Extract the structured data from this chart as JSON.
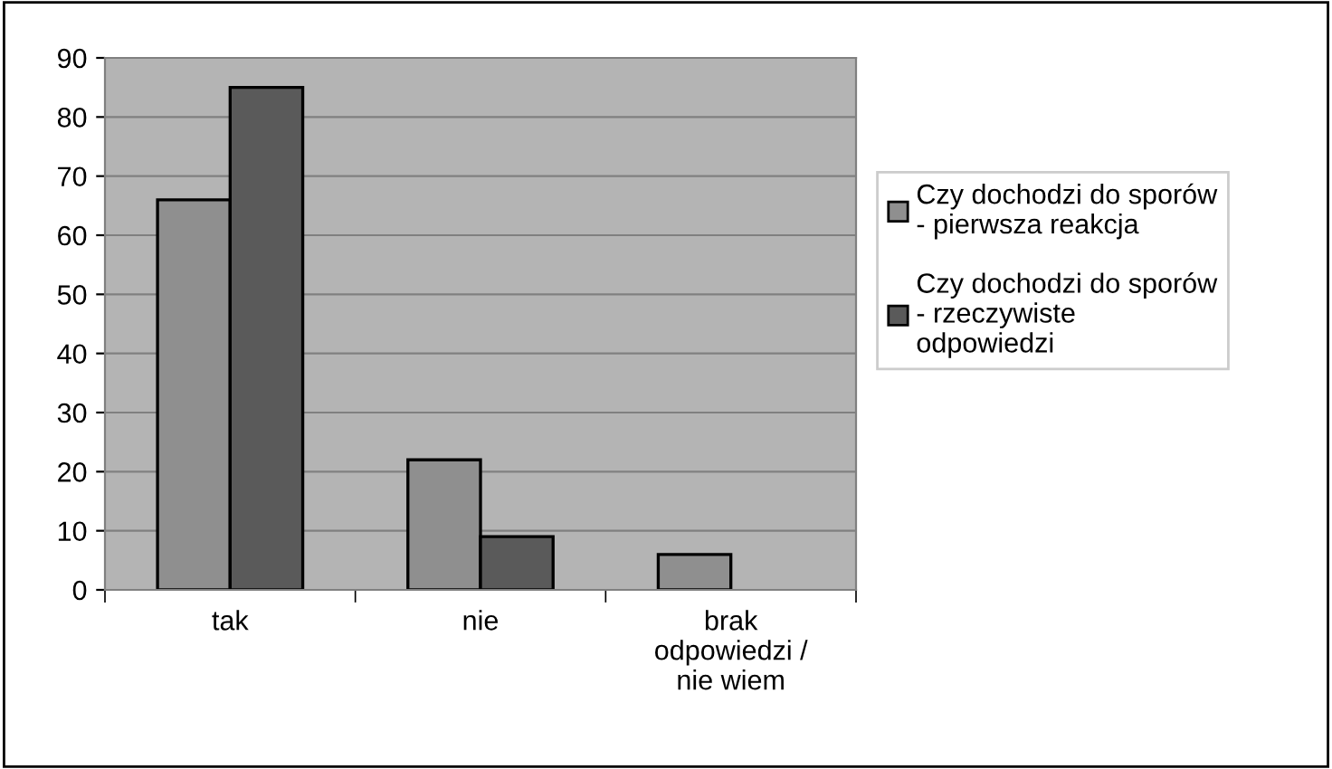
{
  "chart_data": {
    "type": "bar",
    "categories": [
      "tak",
      "nie",
      "brak\nodpowiedzi /\nnie wiem"
    ],
    "series": [
      {
        "name": "Czy dochodzi do sporów\n- pierwsza reakcja",
        "color": "#8f8f8f",
        "values": [
          66,
          22,
          6
        ]
      },
      {
        "name": "Czy dochodzi do sporów\n- rzeczywiste\nodpowiedzi",
        "color": "#5a5a5a",
        "values": [
          85,
          9,
          null
        ]
      }
    ],
    "ylim": [
      0,
      90
    ],
    "yticks": [
      0,
      10,
      20,
      30,
      40,
      50,
      60,
      70,
      80,
      90
    ],
    "grid": "y",
    "legend": "right"
  }
}
